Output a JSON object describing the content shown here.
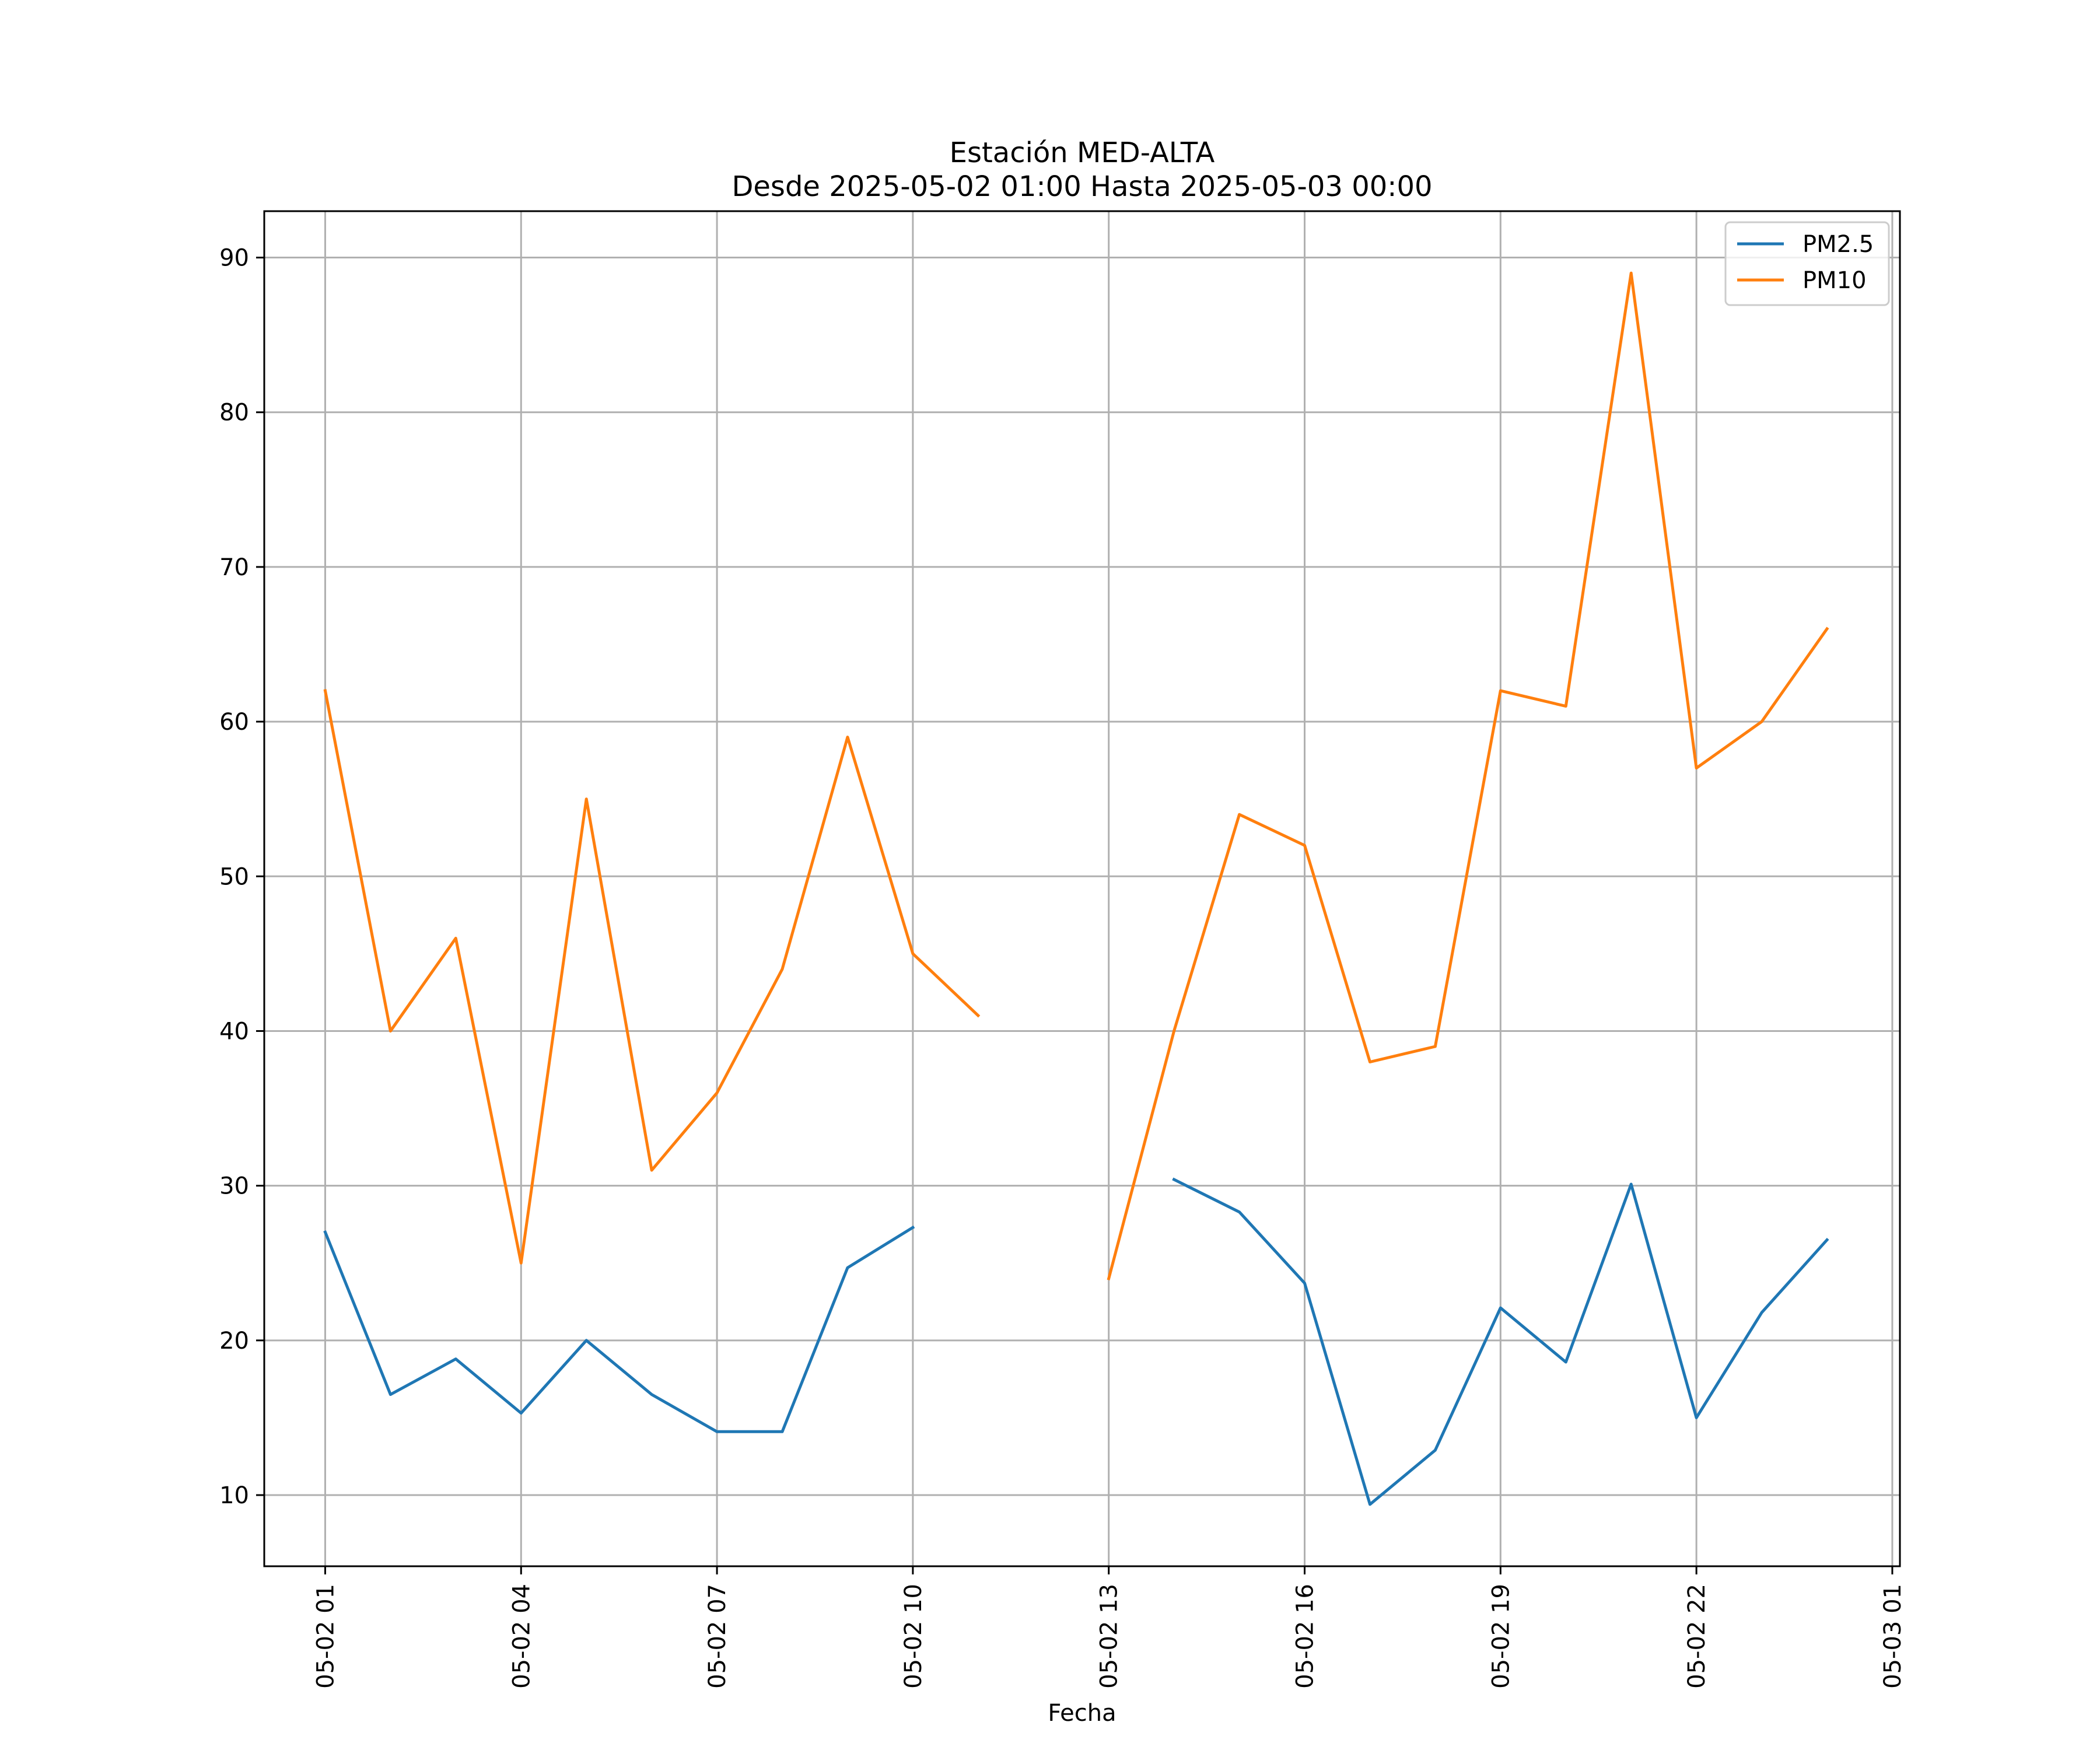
{
  "chart_data": {
    "type": "line",
    "title": "Estación MED-ALTA",
    "subtitle": "Desde 2025-05-02 01:00 Hasta 2025-05-03 00:00",
    "xlabel": "Fecha",
    "ylabel": "",
    "x": [
      "2025-05-02 01:00",
      "2025-05-02 02:00",
      "2025-05-02 03:00",
      "2025-05-02 04:00",
      "2025-05-02 05:00",
      "2025-05-02 06:00",
      "2025-05-02 07:00",
      "2025-05-02 08:00",
      "2025-05-02 09:00",
      "2025-05-02 10:00",
      "2025-05-02 11:00",
      "2025-05-02 12:00",
      "2025-05-02 13:00",
      "2025-05-02 14:00",
      "2025-05-02 15:00",
      "2025-05-02 16:00",
      "2025-05-02 17:00",
      "2025-05-02 18:00",
      "2025-05-02 19:00",
      "2025-05-02 20:00",
      "2025-05-02 21:00",
      "2025-05-02 22:00",
      "2025-05-02 23:00",
      "2025-05-03 00:00"
    ],
    "xlim": [
      "2025-05-02 00:04",
      "2025-05-03 01:07"
    ],
    "ylim": [
      5.4,
      93.0
    ],
    "x_ticks": [
      {
        "x": "2025-05-02 01:00",
        "label": "05-02 01"
      },
      {
        "x": "2025-05-02 04:00",
        "label": "05-02 04"
      },
      {
        "x": "2025-05-02 07:00",
        "label": "05-02 07"
      },
      {
        "x": "2025-05-02 10:00",
        "label": "05-02 10"
      },
      {
        "x": "2025-05-02 13:00",
        "label": "05-02 13"
      },
      {
        "x": "2025-05-02 16:00",
        "label": "05-02 16"
      },
      {
        "x": "2025-05-02 19:00",
        "label": "05-02 19"
      },
      {
        "x": "2025-05-02 22:00",
        "label": "05-02 22"
      },
      {
        "x": "2025-05-03 01:00",
        "label": "05-03 01"
      }
    ],
    "y_ticks": [
      10,
      20,
      30,
      40,
      50,
      60,
      70,
      80,
      90
    ],
    "grid": true,
    "legend_position": "top-right",
    "series": [
      {
        "name": "PM2.5",
        "color": "#1f77b4",
        "values": [
          27.0,
          16.5,
          18.8,
          15.3,
          20.0,
          16.5,
          14.1,
          14.1,
          24.7,
          27.3,
          null,
          null,
          null,
          30.4,
          28.3,
          23.7,
          9.4,
          12.9,
          22.1,
          18.6,
          30.1,
          15.0,
          21.8,
          26.5
        ]
      },
      {
        "name": "PM10",
        "color": "#ff7f0e",
        "values": [
          62,
          40,
          46,
          25,
          55,
          31,
          36,
          44,
          59,
          45,
          41,
          null,
          24,
          40,
          54,
          52,
          38,
          39,
          62,
          61,
          89,
          57,
          60,
          66
        ]
      }
    ]
  }
}
